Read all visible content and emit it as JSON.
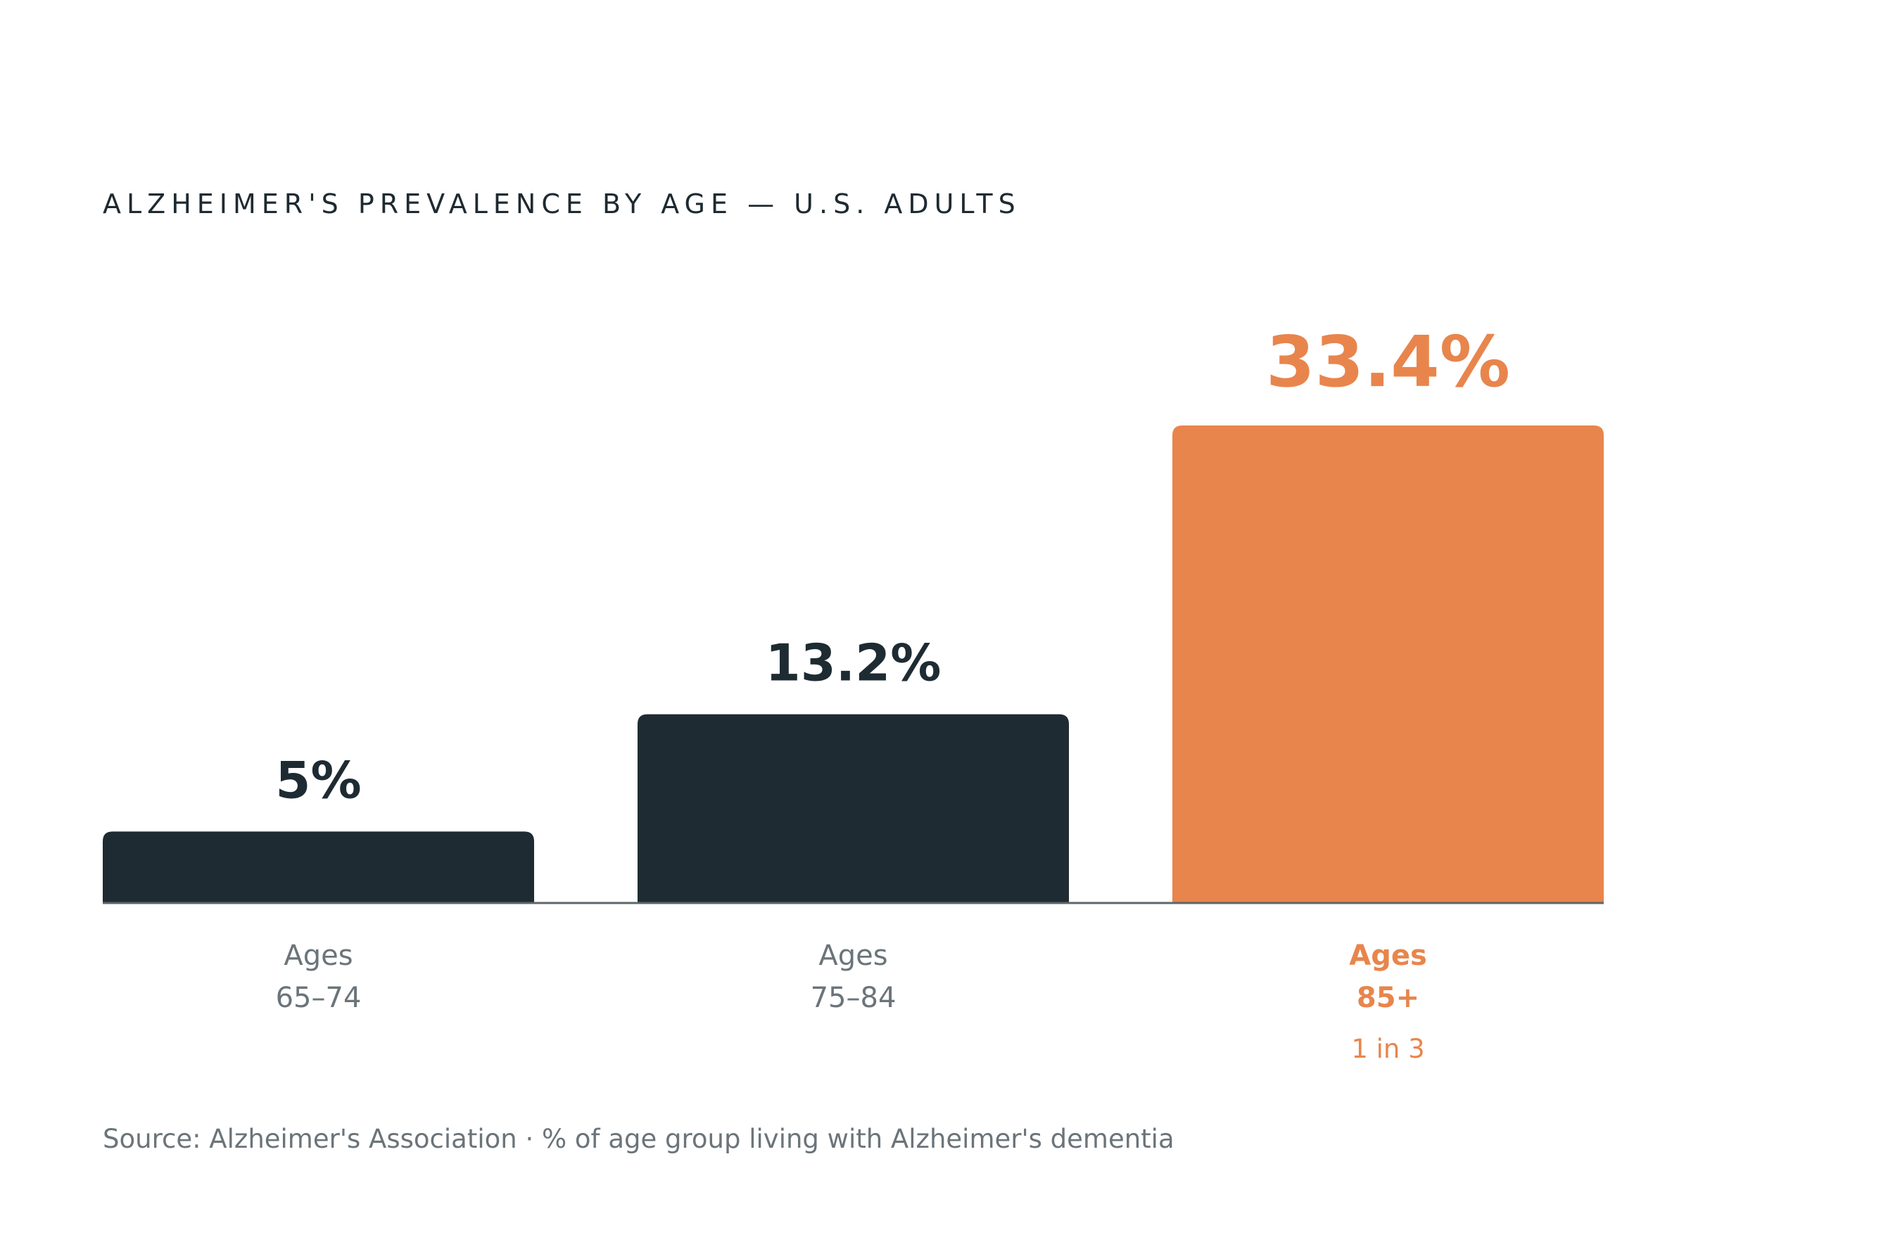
{
  "chart_data": {
    "type": "bar",
    "title": "ALZHEIMER'S PREVALENCE BY AGE — U.S. ADULTS",
    "categories": [
      "Ages 65–74",
      "Ages 75–84",
      "Ages 85+"
    ],
    "category_lines": [
      [
        "Ages",
        "65–74"
      ],
      [
        "Ages",
        "75–84"
      ],
      [
        "Ages",
        "85+"
      ]
    ],
    "values": [
      5,
      13.2,
      33.4
    ],
    "value_labels": [
      "5%",
      "13.2%",
      "33.4%"
    ],
    "annotations": [
      {
        "category": "Ages 85+",
        "text": "1 in 3"
      }
    ],
    "highlight_category": "Ages 85+",
    "xlabel": "",
    "ylabel": "",
    "ylim": [
      0,
      33.4
    ],
    "grid": false,
    "legend": "none",
    "colors": {
      "default_bar": "#1e2b32",
      "highlight_bar": "#e8854c",
      "default_label": "#6b7479",
      "baseline": "#5e666b"
    }
  },
  "source_note": "Source: Alzheimer's Association · % of age group living with Alzheimer's dementia"
}
